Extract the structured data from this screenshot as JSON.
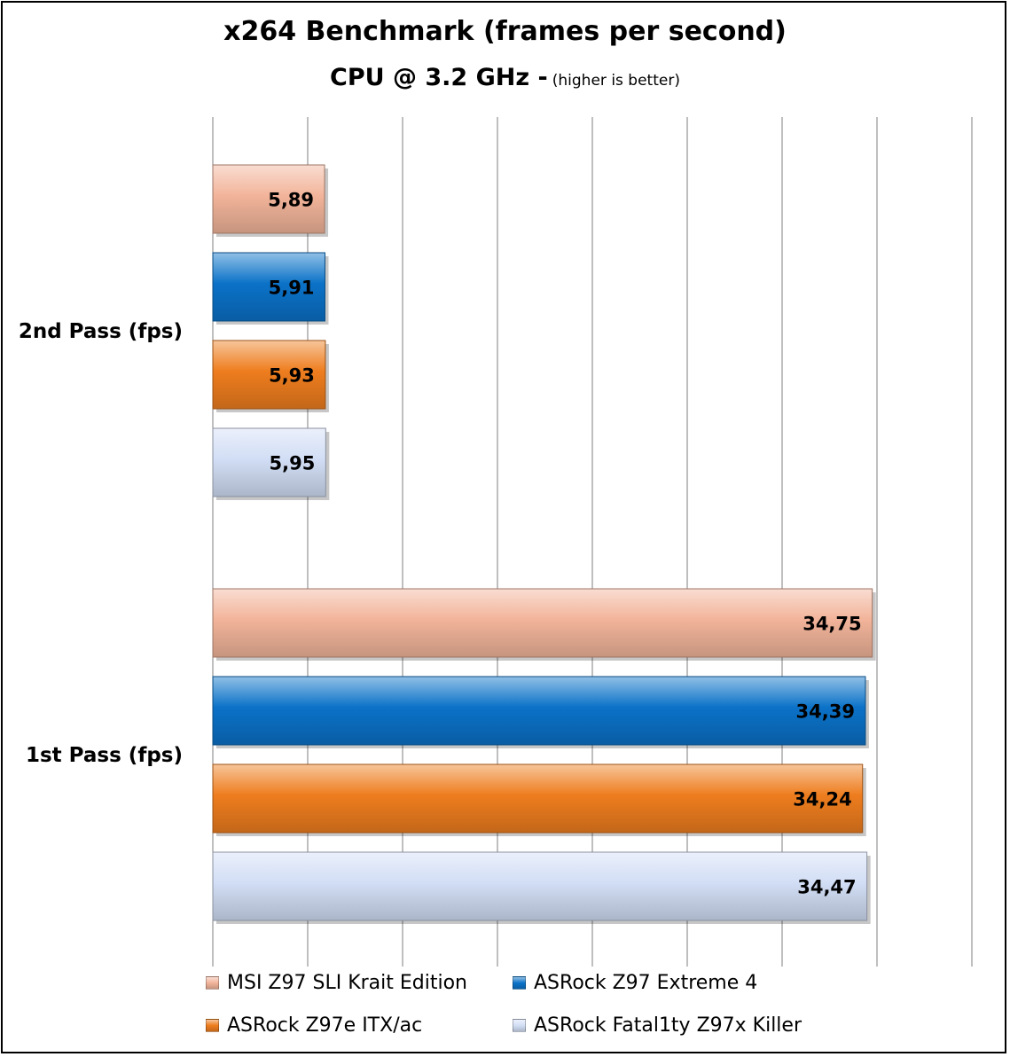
{
  "chart_data": {
    "type": "bar",
    "orientation": "horizontal",
    "title": "x264 Benchmark (frames per second)",
    "subtitle": "CPU @ 3.2 GHz  -",
    "subtitle_note": "(higher is better)",
    "categories": [
      "2nd Pass (fps)",
      "1st Pass (fps)"
    ],
    "series": [
      {
        "name": "MSI Z97 SLI Krait Edition",
        "color": "#f2b49a",
        "values": [
          5.89,
          34.75
        ],
        "labels": [
          "5,89",
          "34,75"
        ]
      },
      {
        "name": "ASRock Z97 Extreme 4",
        "color": "#0b72c8",
        "values": [
          5.91,
          34.39
        ],
        "labels": [
          "5,91",
          "34,39"
        ]
      },
      {
        "name": "ASRock Z97e ITX/ac",
        "color": "#ee7d1e",
        "values": [
          5.93,
          34.24
        ],
        "labels": [
          "5,93",
          "34,24"
        ]
      },
      {
        "name": "ASRock Fatal1ty Z97x Killer",
        "color": "#d2def5",
        "values": [
          5.95,
          34.47
        ],
        "labels": [
          "5,95",
          "34,47"
        ]
      }
    ],
    "xlim": [
      0,
      40
    ],
    "grid": true,
    "gridlines_x": [
      0,
      5,
      10,
      15,
      20,
      25,
      30,
      35,
      40
    ],
    "tick_labels_visible": false,
    "legend_position": "bottom"
  }
}
